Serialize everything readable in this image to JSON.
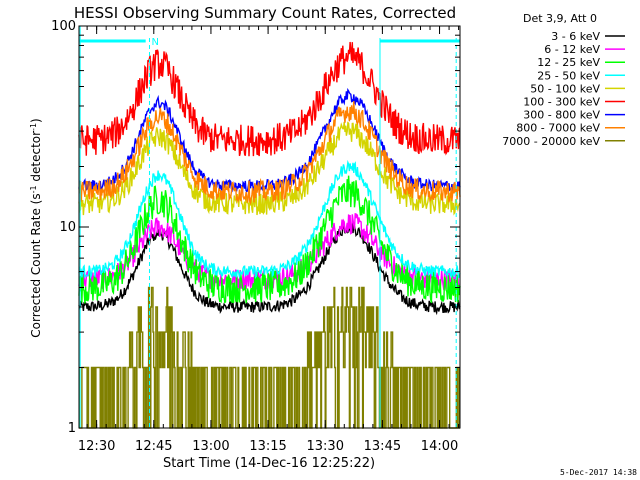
{
  "chart_data": {
    "type": "line",
    "title": "HESSI Observing Summary Count Rates, Corrected",
    "xlabel": "Start Time (14-Dec-16 12:25:22)",
    "ylabel_parts": [
      "Corrected Count Rate (s",
      "-1",
      " detector",
      "-1",
      ")"
    ],
    "yscale": "log",
    "ylim": [
      1,
      100
    ],
    "xlim_minutes": [
      0,
      100
    ],
    "y_ticks": [
      {
        "value": 1,
        "label": "1"
      },
      {
        "value": 10,
        "label": "10"
      },
      {
        "value": 100,
        "label": "100"
      }
    ],
    "x_ticks": [
      {
        "minute": 4.63,
        "label": "12:30"
      },
      {
        "minute": 19.63,
        "label": "12:45"
      },
      {
        "minute": 34.63,
        "label": "13:00"
      },
      {
        "minute": 49.63,
        "label": "13:15"
      },
      {
        "minute": 64.63,
        "label": "13:30"
      },
      {
        "minute": 79.63,
        "label": "13:45"
      },
      {
        "minute": 94.63,
        "label": "14:00"
      }
    ],
    "legend_header": "Det 3,9, Att 0",
    "legend_position": "right",
    "series": [
      {
        "name": "3 - 6 keV",
        "color": "#000000",
        "min": 4,
        "max": 10,
        "profile": "flare"
      },
      {
        "name": "6 - 12 keV",
        "color": "#ff00ff",
        "min": 5.5,
        "max": 10.5,
        "profile": "flare"
      },
      {
        "name": "12 - 25 keV",
        "color": "#00ff00",
        "min": 5,
        "max": 15,
        "profile": "flare"
      },
      {
        "name": "25 - 50 keV",
        "color": "#00ffff",
        "min": 6,
        "max": 20,
        "profile": "flare"
      },
      {
        "name": "50 - 100 keV",
        "color": "#d4d400",
        "min": 13,
        "max": 30,
        "profile": "flare"
      },
      {
        "name": "100 - 300 keV",
        "color": "#ff0000",
        "min": 27,
        "max": 70,
        "profile": "flare"
      },
      {
        "name": "300 - 800 keV",
        "color": "#0000ff",
        "min": 16,
        "max": 45,
        "profile": "flare"
      },
      {
        "name": "800 - 7000 keV",
        "color": "#ff8000",
        "min": 15,
        "max": 38,
        "profile": "flare"
      },
      {
        "name": "7000 - 20000 keV",
        "color": "#808000",
        "min": 1,
        "max": 5,
        "profile": "steps"
      }
    ],
    "flag_bars": [
      {
        "start_minute": 0,
        "end_minute": 17.5,
        "label": "N",
        "label_minute": 20
      },
      {
        "start_minute": 79,
        "end_minute": 100,
        "label": "",
        "label_minute": 0
      }
    ],
    "vertical_markers_minutes": [
      18.5,
      79,
      99
    ],
    "flag_color": "#00ffff",
    "date_stamp": "5-Dec-2017 14:38"
  }
}
